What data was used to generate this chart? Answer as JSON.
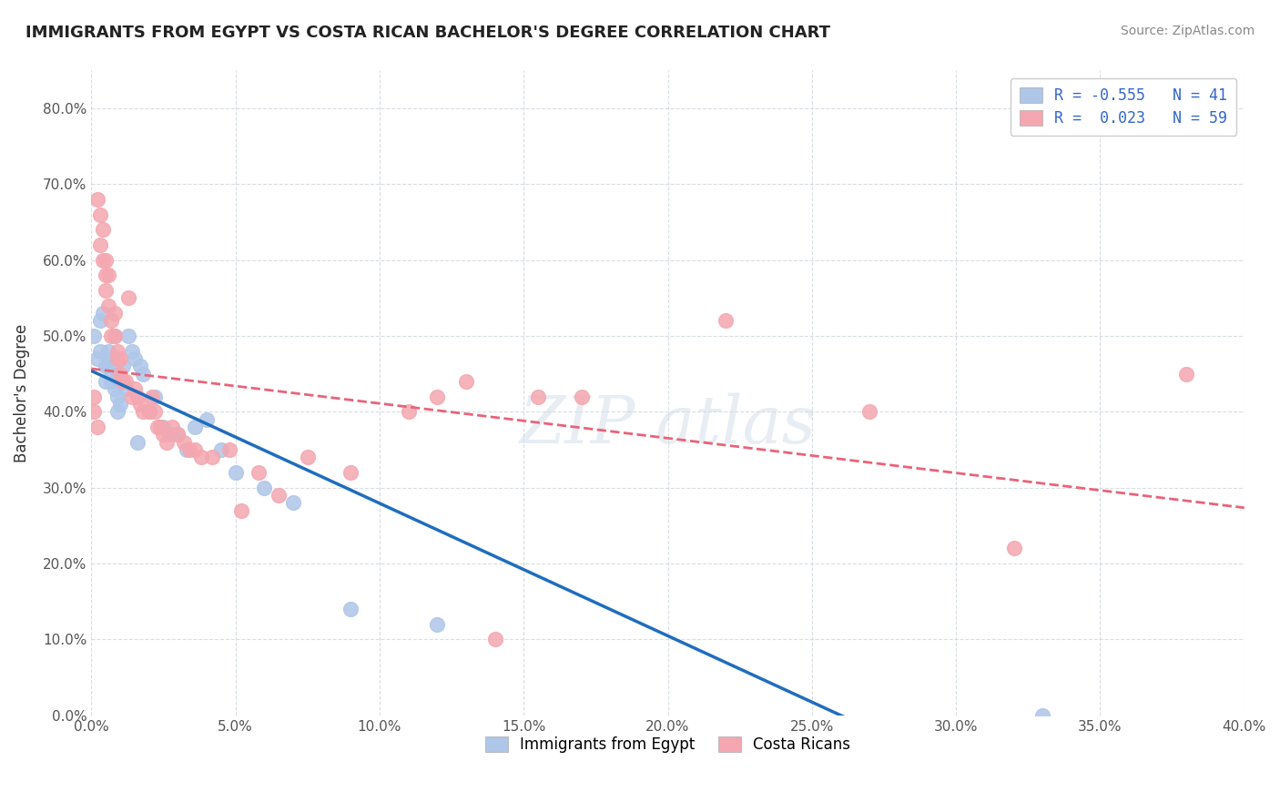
{
  "title": "IMMIGRANTS FROM EGYPT VS COSTA RICAN BACHELOR'S DEGREE CORRELATION CHART",
  "source": "Source: ZipAtlas.com",
  "ylabel": "Bachelor's Degree",
  "xlabel": "",
  "xlim": [
    0.0,
    0.4
  ],
  "ylim": [
    0.0,
    0.85
  ],
  "R_egypt": -0.555,
  "N_egypt": 41,
  "R_costa": 0.023,
  "N_costa": 59,
  "legend_egypt": "Immigrants from Egypt",
  "legend_costa": "Costa Ricans",
  "color_egypt": "#aec6e8",
  "color_costa": "#f4a7b0",
  "line_color_egypt": "#1f6dbf",
  "line_color_costa": "#e8637a",
  "egypt_x": [
    0.001,
    0.002,
    0.003,
    0.003,
    0.004,
    0.005,
    0.005,
    0.006,
    0.006,
    0.007,
    0.007,
    0.008,
    0.008,
    0.009,
    0.009,
    0.009,
    0.01,
    0.01,
    0.011,
    0.012,
    0.013,
    0.014,
    0.015,
    0.016,
    0.017,
    0.018,
    0.02,
    0.022,
    0.025,
    0.027,
    0.03,
    0.033,
    0.036,
    0.04,
    0.045,
    0.05,
    0.06,
    0.07,
    0.09,
    0.12,
    0.33
  ],
  "egypt_y": [
    0.5,
    0.47,
    0.48,
    0.52,
    0.53,
    0.44,
    0.46,
    0.46,
    0.48,
    0.44,
    0.47,
    0.43,
    0.5,
    0.4,
    0.42,
    0.45,
    0.41,
    0.44,
    0.46,
    0.43,
    0.5,
    0.48,
    0.47,
    0.36,
    0.46,
    0.45,
    0.4,
    0.42,
    0.38,
    0.37,
    0.37,
    0.35,
    0.38,
    0.39,
    0.35,
    0.32,
    0.3,
    0.28,
    0.14,
    0.12,
    0.0
  ],
  "costa_x": [
    0.001,
    0.001,
    0.002,
    0.002,
    0.003,
    0.003,
    0.004,
    0.004,
    0.005,
    0.005,
    0.005,
    0.006,
    0.006,
    0.007,
    0.007,
    0.008,
    0.008,
    0.009,
    0.009,
    0.01,
    0.01,
    0.011,
    0.012,
    0.013,
    0.014,
    0.015,
    0.016,
    0.017,
    0.018,
    0.02,
    0.021,
    0.022,
    0.023,
    0.024,
    0.025,
    0.026,
    0.028,
    0.03,
    0.032,
    0.034,
    0.036,
    0.038,
    0.042,
    0.048,
    0.052,
    0.058,
    0.065,
    0.075,
    0.09,
    0.11,
    0.12,
    0.13,
    0.14,
    0.155,
    0.17,
    0.22,
    0.27,
    0.32,
    0.38
  ],
  "costa_y": [
    0.42,
    0.4,
    0.38,
    0.68,
    0.62,
    0.66,
    0.6,
    0.64,
    0.58,
    0.56,
    0.6,
    0.54,
    0.58,
    0.52,
    0.5,
    0.53,
    0.5,
    0.47,
    0.48,
    0.45,
    0.47,
    0.44,
    0.44,
    0.55,
    0.42,
    0.43,
    0.42,
    0.41,
    0.4,
    0.4,
    0.42,
    0.4,
    0.38,
    0.38,
    0.37,
    0.36,
    0.38,
    0.37,
    0.36,
    0.35,
    0.35,
    0.34,
    0.34,
    0.35,
    0.27,
    0.32,
    0.29,
    0.34,
    0.32,
    0.4,
    0.42,
    0.44,
    0.1,
    0.42,
    0.42,
    0.52,
    0.4,
    0.22,
    0.45
  ]
}
